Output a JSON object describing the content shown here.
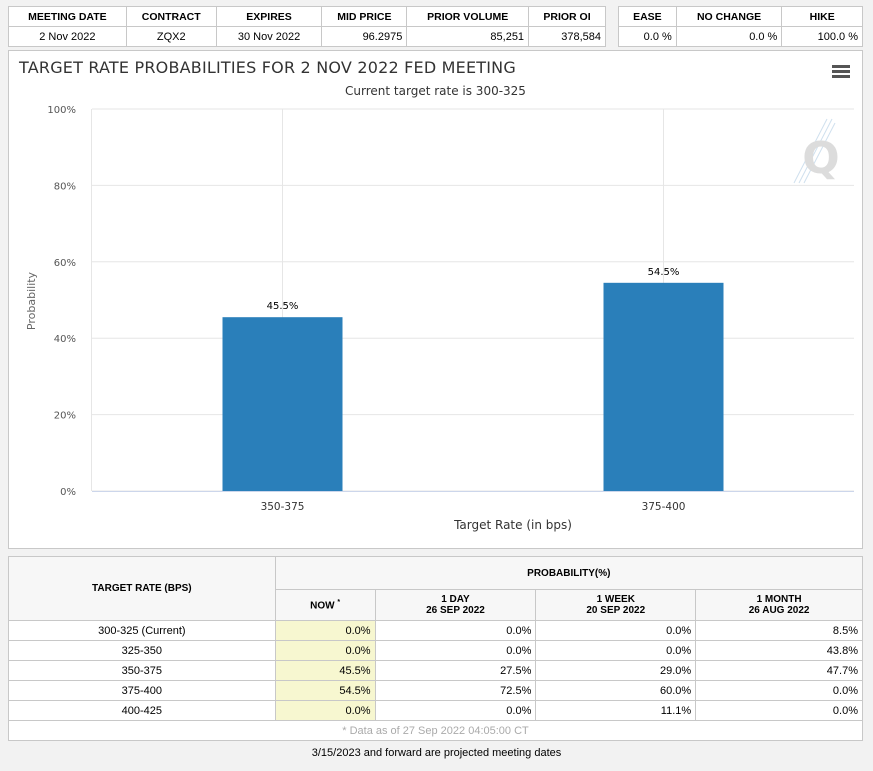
{
  "contract_table": {
    "headers": [
      "MEETING DATE",
      "CONTRACT",
      "EXPIRES",
      "MID PRICE",
      "PRIOR VOLUME",
      "PRIOR OI"
    ],
    "row": [
      "2 Nov 2022",
      "ZQX2",
      "30 Nov 2022",
      "96.2975",
      "85,251",
      "378,584"
    ]
  },
  "change_table": {
    "headers": [
      "EASE",
      "NO CHANGE",
      "HIKE"
    ],
    "row": [
      "0.0 %",
      "0.0 %",
      "100.0 %"
    ]
  },
  "chart": {
    "title": "TARGET RATE PROBABILITIES FOR 2 NOV 2022 FED MEETING",
    "subtitle": "Current target rate is 300-325",
    "watermark": "Q",
    "bar_color": "#2a7fba"
  },
  "chart_data": {
    "type": "bar",
    "title": "TARGET RATE PROBABILITIES FOR 2 NOV 2022 FED MEETING",
    "subtitle": "Current target rate is 300-325",
    "categories": [
      "350-375",
      "375-400"
    ],
    "values": [
      45.5,
      54.5
    ],
    "data_labels": [
      "45.5%",
      "54.5%"
    ],
    "xlabel": "Target Rate (in bps)",
    "ylabel": "Probability",
    "ylim": [
      0,
      100
    ],
    "yticks": [
      0,
      20,
      40,
      60,
      80,
      100
    ],
    "ytick_labels": [
      "0%",
      "20%",
      "40%",
      "60%",
      "80%",
      "100%"
    ],
    "grid": true,
    "legend": "none"
  },
  "probability_table": {
    "header_rate": "TARGET RATE (BPS)",
    "header_prob": "PROBABILITY(%)",
    "col_now": "NOW",
    "col_now_mark": "*",
    "col_1day": "1 DAY",
    "col_1day_date": "26 SEP 2022",
    "col_1week": "1 WEEK",
    "col_1week_date": "20 SEP 2022",
    "col_1month": "1 MONTH",
    "col_1month_date": "26 AUG 2022",
    "rows": [
      {
        "rate": "300-325 (Current)",
        "now": "0.0%",
        "day": "0.0%",
        "week": "0.0%",
        "month": "8.5%"
      },
      {
        "rate": "325-350",
        "now": "0.0%",
        "day": "0.0%",
        "week": "0.0%",
        "month": "43.8%"
      },
      {
        "rate": "350-375",
        "now": "45.5%",
        "day": "27.5%",
        "week": "29.0%",
        "month": "47.7%"
      },
      {
        "rate": "375-400",
        "now": "54.5%",
        "day": "72.5%",
        "week": "60.0%",
        "month": "0.0%"
      },
      {
        "rate": "400-425",
        "now": "0.0%",
        "day": "0.0%",
        "week": "11.1%",
        "month": "0.0%"
      }
    ],
    "data_as_of": "* Data as of 27 Sep 2022 04:05:00 CT"
  },
  "footer_note": "3/15/2023 and forward are projected meeting dates"
}
